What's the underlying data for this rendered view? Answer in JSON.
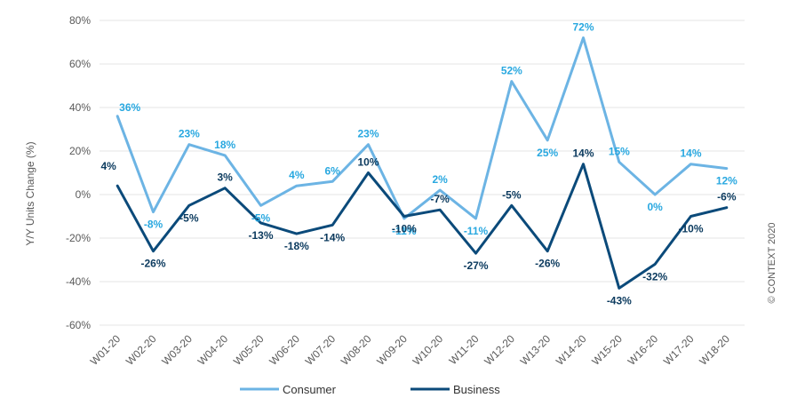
{
  "chart_data": {
    "type": "line",
    "categories": [
      "W01-20",
      "W02-20",
      "W03-20",
      "W04-20",
      "W05-20",
      "W06-20",
      "W07-20",
      "W08-20",
      "W09-20",
      "W10-20",
      "W11-20",
      "W12-20",
      "W13-20",
      "W14-20",
      "W15-20",
      "W16-20",
      "W17-20",
      "W18-20"
    ],
    "series": [
      {
        "name": "Consumer",
        "color": "#6CB4E4",
        "label_color": "#29A8E0",
        "values": [
          36,
          -8,
          23,
          18,
          -5,
          4,
          6,
          23,
          -11,
          2,
          -11,
          52,
          25,
          72,
          15,
          0,
          14,
          12
        ],
        "labels": [
          "36%",
          "-8%",
          "23%",
          "18%",
          "-5%",
          "4%",
          "6%",
          "23%",
          "-11%",
          "2%",
          "-11%",
          "52%",
          "25%",
          "72%",
          "15%",
          "0%",
          "14%",
          "12%"
        ]
      },
      {
        "name": "Business",
        "color": "#0B4A7A",
        "label_color": "#0B3A5E",
        "values": [
          4,
          -26,
          -5,
          3,
          -13,
          -18,
          -14,
          10,
          -10,
          -7,
          -27,
          -5,
          -26,
          14,
          -43,
          -32,
          -10,
          -6
        ],
        "labels": [
          "4%",
          "-26%",
          "-5%",
          "3%",
          "-13%",
          "-18%",
          "-14%",
          "10%",
          "-10%",
          "-7%",
          "-27%",
          "-5%",
          "-26%",
          "14%",
          "-43%",
          "-32%",
          "-10%",
          "-6%"
        ]
      }
    ],
    "ylabel": "Y/Y Units Change (%)",
    "ylim": [
      -60,
      80
    ],
    "yticks": [
      80,
      60,
      40,
      20,
      0,
      -20,
      -40,
      -60
    ],
    "ytick_labels": [
      "80%",
      "60%",
      "40%",
      "20%",
      "0%",
      "-20%",
      "-40%",
      "-60%"
    ],
    "grid": true,
    "legend_position": "bottom-center",
    "copyright": "© CONTEXT 2020"
  }
}
